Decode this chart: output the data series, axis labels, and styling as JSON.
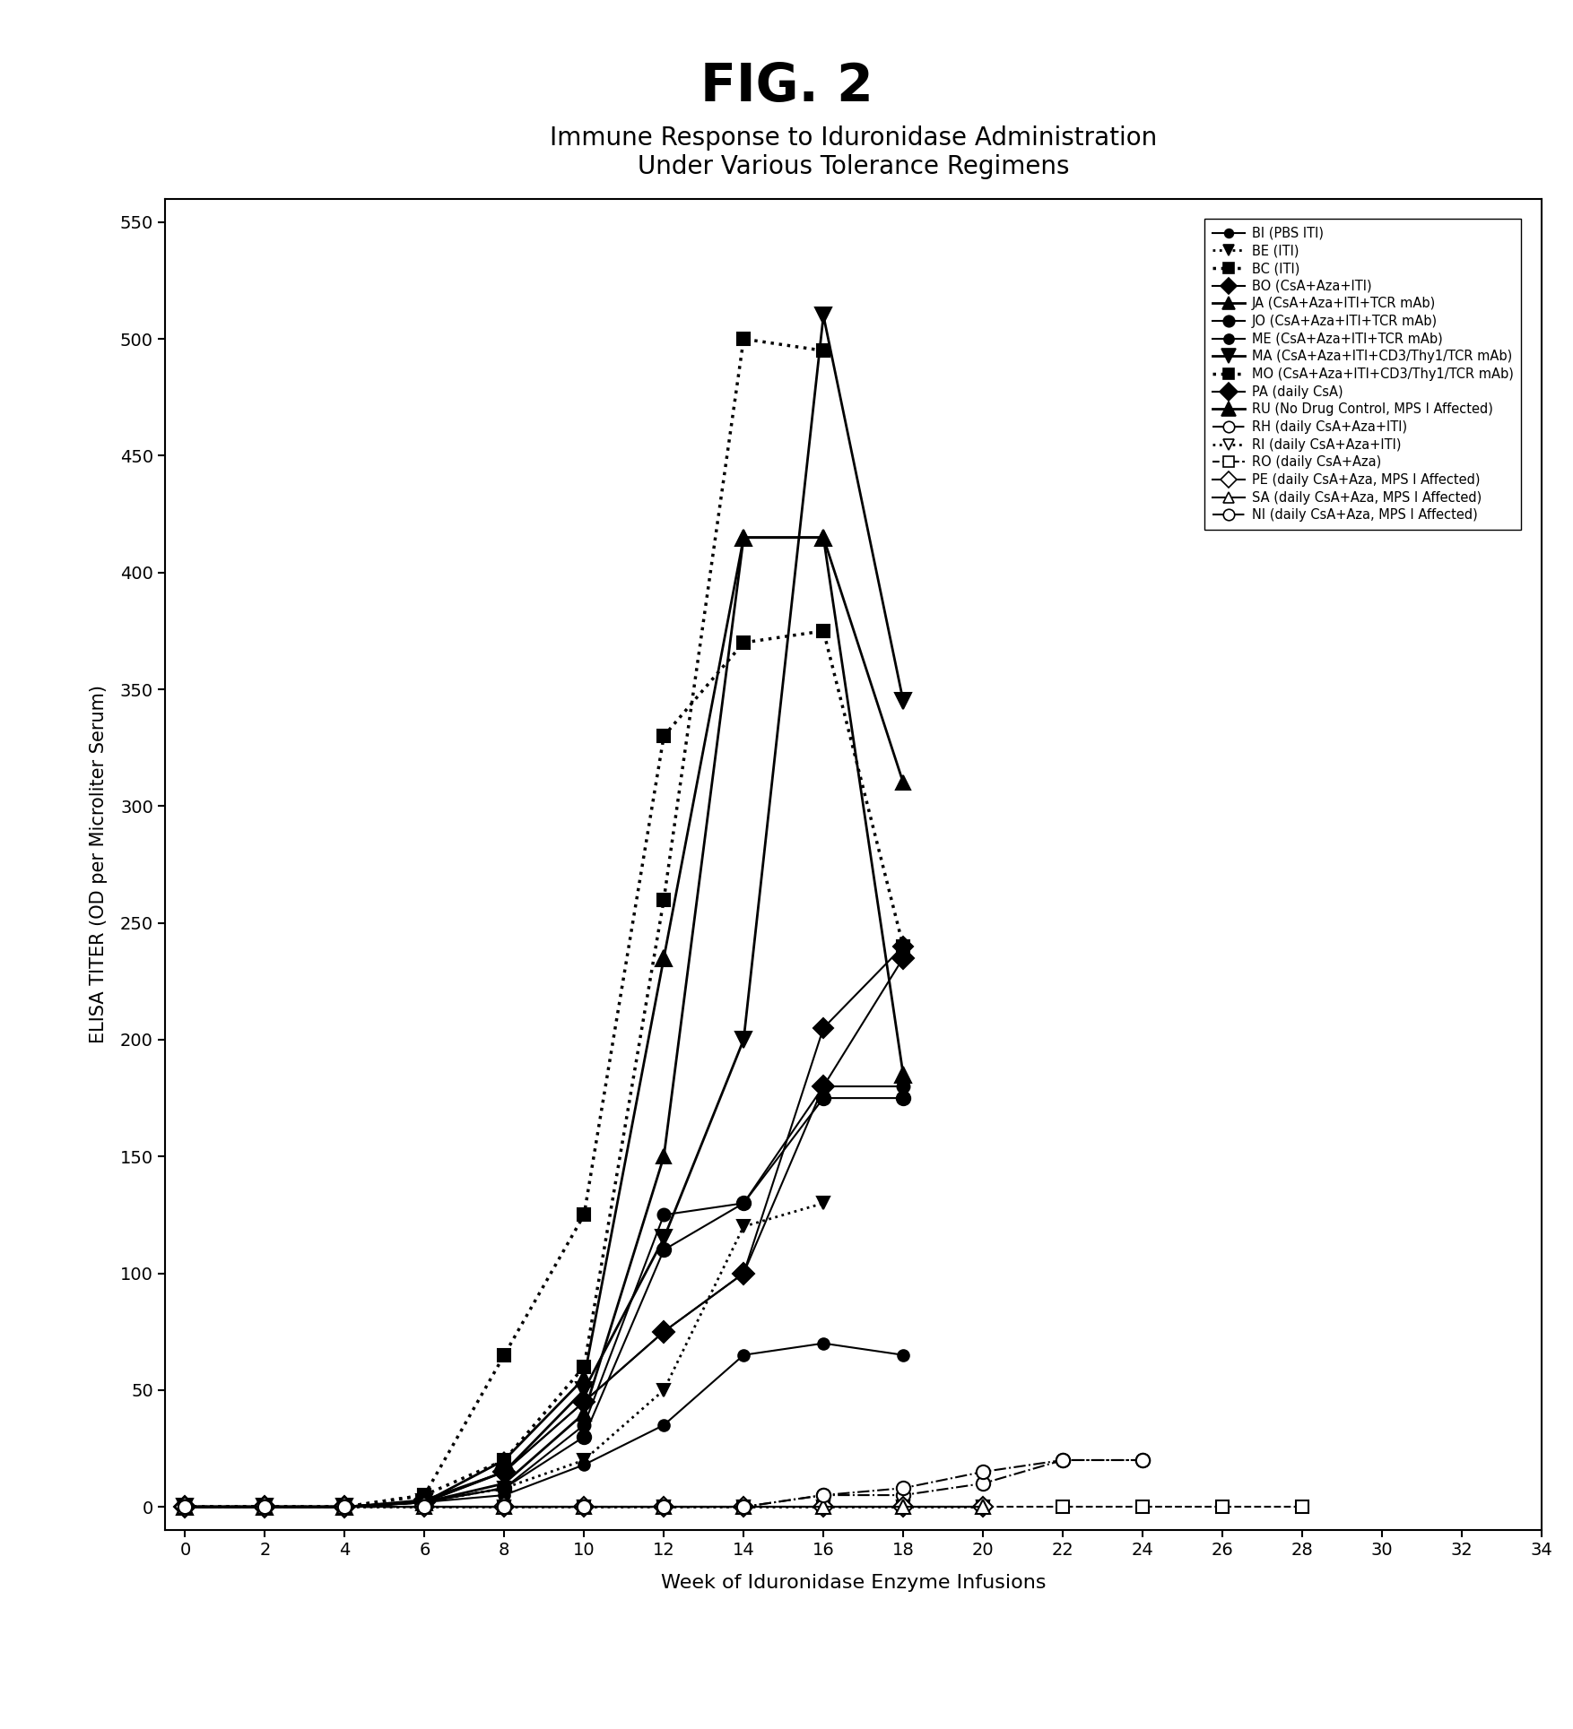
{
  "title_main": "FIG. 2",
  "title_sub": "Immune Response to Iduronidase Administration\nUnder Various Tolerance Regimens",
  "xlabel": "Week of Iduronidase Enzyme Infusions",
  "ylabel": "ELISA TITER (OD per Microliter Serum)",
  "xlim": [
    -0.5,
    34
  ],
  "ylim": [
    -10,
    560
  ],
  "xticks": [
    0,
    2,
    4,
    6,
    8,
    10,
    12,
    14,
    16,
    18,
    20,
    22,
    24,
    26,
    28,
    30,
    32,
    34
  ],
  "yticks": [
    0,
    50,
    100,
    150,
    200,
    250,
    300,
    350,
    400,
    450,
    500,
    550
  ],
  "series": [
    {
      "label": "BI (PBS ITI)",
      "x": [
        0,
        2,
        4,
        6,
        8,
        10,
        12,
        14,
        16,
        18
      ],
      "y": [
        0,
        0,
        0,
        2,
        5,
        18,
        35,
        65,
        70,
        65
      ],
      "color": "black",
      "marker": "o",
      "markersize": 9,
      "linestyle": "-",
      "linewidth": 1.5,
      "fillstyle": "full"
    },
    {
      "label": "BE (ITI)",
      "x": [
        0,
        2,
        4,
        6,
        8,
        10,
        12,
        14,
        16
      ],
      "y": [
        0,
        0,
        0,
        2,
        8,
        20,
        50,
        120,
        130
      ],
      "color": "black",
      "marker": "v",
      "markersize": 10,
      "linestyle": ":",
      "linewidth": 2.0,
      "fillstyle": "full"
    },
    {
      "label": "BC (ITI)",
      "x": [
        0,
        2,
        4,
        6,
        8,
        10,
        12,
        14,
        16,
        18
      ],
      "y": [
        0,
        0,
        0,
        5,
        65,
        125,
        330,
        370,
        375,
        240
      ],
      "color": "black",
      "marker": "s",
      "markersize": 10,
      "linestyle": ":",
      "linewidth": 2.5,
      "fillstyle": "full"
    },
    {
      "label": "BO (CsA+Aza+ITI)",
      "x": [
        0,
        2,
        4,
        6,
        8,
        10,
        12,
        14,
        16,
        18
      ],
      "y": [
        0,
        0,
        0,
        3,
        15,
        45,
        75,
        100,
        205,
        240
      ],
      "color": "black",
      "marker": "D",
      "markersize": 11,
      "linestyle": "-",
      "linewidth": 1.5,
      "fillstyle": "full"
    },
    {
      "label": "JA (CsA+Aza+ITI+TCR mAb)",
      "x": [
        0,
        2,
        4,
        6,
        8,
        10,
        12,
        14,
        16,
        18
      ],
      "y": [
        0,
        0,
        0,
        2,
        10,
        40,
        150,
        415,
        415,
        310
      ],
      "color": "black",
      "marker": "^",
      "markersize": 12,
      "linestyle": "-",
      "linewidth": 2.0,
      "fillstyle": "full"
    },
    {
      "label": "JO (CsA+Aza+ITI+TCR mAb)",
      "x": [
        0,
        2,
        4,
        6,
        8,
        10,
        12,
        14,
        16,
        18
      ],
      "y": [
        0,
        0,
        0,
        2,
        8,
        30,
        110,
        130,
        175,
        175
      ],
      "color": "black",
      "marker": "o",
      "markersize": 11,
      "linestyle": "-",
      "linewidth": 1.5,
      "fillstyle": "full"
    },
    {
      "label": "ME (CsA+Aza+ITI+TCR mAb)",
      "x": [
        0,
        2,
        4,
        6,
        8,
        10,
        12,
        14,
        16,
        18
      ],
      "y": [
        0,
        0,
        0,
        2,
        8,
        35,
        125,
        130,
        180,
        180
      ],
      "color": "black",
      "marker": "o",
      "markersize": 10,
      "linestyle": "-",
      "linewidth": 1.5,
      "fillstyle": "full"
    },
    {
      "label": "MA (CsA+Aza+ITI+CD3/Thy1/TCR mAb)",
      "x": [
        0,
        2,
        4,
        6,
        8,
        10,
        12,
        14,
        16,
        18
      ],
      "y": [
        0,
        0,
        0,
        2,
        15,
        50,
        115,
        200,
        510,
        345
      ],
      "color": "black",
      "marker": "v",
      "markersize": 13,
      "linestyle": "-",
      "linewidth": 2.0,
      "fillstyle": "full"
    },
    {
      "label": "MO (CsA+Aza+ITI+CD3/Thy1/TCR mAb)",
      "x": [
        0,
        2,
        4,
        6,
        8,
        10,
        12,
        14,
        16
      ],
      "y": [
        0,
        0,
        0,
        5,
        20,
        60,
        260,
        500,
        495
      ],
      "color": "black",
      "marker": "s",
      "markersize": 10,
      "linestyle": ":",
      "linewidth": 2.5,
      "fillstyle": "full"
    },
    {
      "label": "PA (daily CsA)",
      "x": [
        0,
        2,
        4,
        6,
        8,
        10,
        12,
        14,
        16,
        18
      ],
      "y": [
        0,
        0,
        0,
        2,
        15,
        45,
        75,
        100,
        180,
        235
      ],
      "color": "black",
      "marker": "D",
      "markersize": 12,
      "linestyle": "-",
      "linewidth": 1.5,
      "fillstyle": "full"
    },
    {
      "label": "RU (No Drug Control, MPS I Affected)",
      "x": [
        0,
        2,
        4,
        6,
        8,
        10,
        12,
        14,
        16,
        18
      ],
      "y": [
        0,
        0,
        0,
        2,
        20,
        55,
        235,
        415,
        415,
        185
      ],
      "color": "black",
      "marker": "^",
      "markersize": 13,
      "linestyle": "-",
      "linewidth": 2.0,
      "fillstyle": "full"
    },
    {
      "label": "RH (daily CsA+Aza+ITI)",
      "x": [
        0,
        2,
        4,
        6,
        8,
        10,
        12,
        14,
        16,
        18,
        20,
        22,
        24
      ],
      "y": [
        0,
        0,
        0,
        0,
        0,
        0,
        0,
        0,
        5,
        5,
        10,
        20,
        20
      ],
      "color": "black",
      "marker": "o",
      "markersize": 11,
      "linestyle": "-.",
      "linewidth": 1.5,
      "fillstyle": "none"
    },
    {
      "label": "RI (daily CsA+Aza+ITI)",
      "x": [
        0,
        2,
        4,
        6,
        8,
        10,
        12,
        14,
        16,
        18,
        20
      ],
      "y": [
        0,
        0,
        0,
        0,
        0,
        0,
        0,
        0,
        0,
        0,
        0
      ],
      "color": "black",
      "marker": "v",
      "markersize": 10,
      "linestyle": ":",
      "linewidth": 2.0,
      "fillstyle": "none"
    },
    {
      "label": "RO (daily CsA+Aza)",
      "x": [
        0,
        2,
        4,
        6,
        8,
        10,
        12,
        14,
        16,
        18,
        20,
        22,
        24,
        26,
        28
      ],
      "y": [
        0,
        0,
        0,
        0,
        0,
        0,
        0,
        0,
        0,
        0,
        0,
        0,
        0,
        0,
        0
      ],
      "color": "black",
      "marker": "s",
      "markersize": 10,
      "linestyle": "--",
      "linewidth": 1.5,
      "fillstyle": "none"
    },
    {
      "label": "PE (daily CsA+Aza, MPS I Affected)",
      "x": [
        0,
        2,
        4,
        6,
        8,
        10,
        12,
        14,
        16,
        18,
        20
      ],
      "y": [
        0,
        0,
        0,
        0,
        0,
        0,
        0,
        0,
        0,
        0,
        0
      ],
      "color": "black",
      "marker": "D",
      "markersize": 11,
      "linestyle": "-",
      "linewidth": 1.5,
      "fillstyle": "none"
    },
    {
      "label": "SA (daily CsA+Aza, MPS I Affected)",
      "x": [
        0,
        2,
        4,
        6,
        8,
        10,
        12,
        14,
        16,
        18,
        20
      ],
      "y": [
        0,
        0,
        0,
        0,
        0,
        0,
        0,
        0,
        0,
        0,
        0
      ],
      "color": "black",
      "marker": "^",
      "markersize": 11,
      "linestyle": "-",
      "linewidth": 1.5,
      "fillstyle": "none"
    },
    {
      "label": "NI (daily CsA+Aza, MPS I Affected)",
      "x": [
        0,
        2,
        4,
        6,
        8,
        10,
        12,
        14,
        16,
        18,
        20,
        22,
        24
      ],
      "y": [
        0,
        0,
        0,
        0,
        0,
        0,
        0,
        0,
        5,
        8,
        15,
        20,
        20
      ],
      "color": "black",
      "marker": "o",
      "markersize": 11,
      "linestyle": "-.",
      "linewidth": 1.5,
      "fillstyle": "none"
    }
  ]
}
